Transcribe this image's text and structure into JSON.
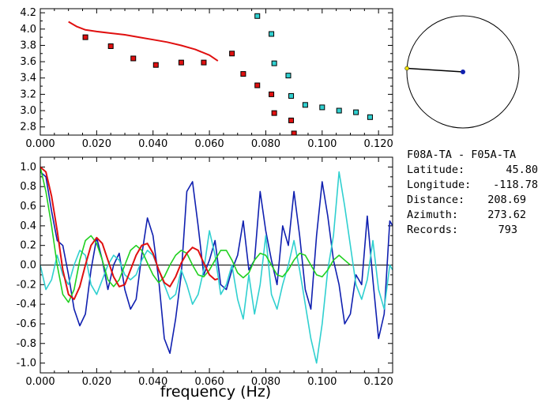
{
  "colors": {
    "red": "#e01010",
    "cyan": "#30d0d0",
    "navy": "#1020b0",
    "green": "#20d020",
    "yellow": "#f0e000",
    "black": "#000000"
  },
  "info": {
    "title": "F08A-TA - F05A-TA",
    "rows": [
      {
        "label": "Latitude:",
        "value": "45.80"
      },
      {
        "label": "Longitude:",
        "value": "-118.78"
      },
      {
        "label": "Distance:",
        "value": "208.69"
      },
      {
        "label": "Azimuth:",
        "value": "273.62"
      },
      {
        "label": "Records:",
        "value": "793"
      }
    ]
  },
  "chart_data": [
    {
      "type": "scatter",
      "panel": "top",
      "xlim": [
        0.0,
        0.125
      ],
      "ylim": [
        2.7,
        4.25
      ],
      "xticks": [
        "0.000",
        "0.020",
        "0.040",
        "0.060",
        "0.080",
        "0.100",
        "0.120"
      ],
      "yticks": [
        "2.8",
        "3.0",
        "3.2",
        "3.4",
        "3.6",
        "3.8",
        "4.0",
        "4.2"
      ],
      "series": [
        {
          "kind": "line",
          "color": "red",
          "x": [
            0.01,
            0.013,
            0.016,
            0.02,
            0.025,
            0.03,
            0.035,
            0.04,
            0.045,
            0.05,
            0.055,
            0.06,
            0.063
          ],
          "y": [
            4.09,
            4.03,
            3.99,
            3.97,
            3.95,
            3.93,
            3.9,
            3.87,
            3.84,
            3.8,
            3.75,
            3.68,
            3.61
          ]
        },
        {
          "kind": "points",
          "color": "red",
          "x": [
            0.016,
            0.025,
            0.033,
            0.041,
            0.05,
            0.058,
            0.068,
            0.072,
            0.077,
            0.082,
            0.083,
            0.089,
            0.09
          ],
          "y": [
            3.9,
            3.79,
            3.64,
            3.56,
            3.59,
            3.59,
            3.7,
            3.45,
            3.31,
            3.2,
            2.97,
            2.88,
            2.72
          ]
        },
        {
          "kind": "points",
          "color": "cyan",
          "x": [
            0.077,
            0.082,
            0.083,
            0.088,
            0.089,
            0.094,
            0.1,
            0.106,
            0.112,
            0.117
          ],
          "y": [
            4.16,
            3.94,
            3.58,
            3.43,
            3.18,
            3.07,
            3.04,
            3.0,
            2.98,
            2.92
          ]
        }
      ]
    },
    {
      "type": "line",
      "panel": "bottom",
      "xlabel": "frequency (Hz)",
      "xlim": [
        0.0,
        0.125
      ],
      "ylim": [
        -1.1,
        1.1
      ],
      "xticks": [
        "0.000",
        "0.020",
        "0.040",
        "0.060",
        "0.080",
        "0.100",
        "0.120"
      ],
      "yticks": [
        "1.0",
        "0.8",
        "0.6",
        "0.4",
        "0.2",
        "0.0",
        "-0.2",
        "-0.4",
        "-0.6",
        "-0.8",
        "-1.0"
      ],
      "series": [
        {
          "color": "navy",
          "x": [
            0.0,
            0.002,
            0.004,
            0.006,
            0.008,
            0.01,
            0.012,
            0.014,
            0.016,
            0.018,
            0.02,
            0.022,
            0.024,
            0.026,
            0.028,
            0.03,
            0.032,
            0.034,
            0.036,
            0.038,
            0.04,
            0.042,
            0.044,
            0.046,
            0.048,
            0.05,
            0.052,
            0.054,
            0.056,
            0.058,
            0.06,
            0.062,
            0.064,
            0.066,
            0.068,
            0.07,
            0.072,
            0.074,
            0.076,
            0.078,
            0.08,
            0.082,
            0.084,
            0.086,
            0.088,
            0.09,
            0.092,
            0.094,
            0.096,
            0.098,
            0.1,
            0.102,
            0.104,
            0.106,
            0.108,
            0.11,
            0.112,
            0.114,
            0.116,
            0.118,
            0.12,
            0.122,
            0.124,
            0.125
          ],
          "y": [
            0.95,
            0.9,
            0.55,
            0.25,
            0.2,
            -0.1,
            -0.45,
            -0.62,
            -0.5,
            -0.05,
            0.28,
            0.05,
            -0.25,
            0.0,
            0.12,
            -0.25,
            -0.45,
            -0.35,
            0.1,
            0.48,
            0.3,
            -0.15,
            -0.75,
            -0.9,
            -0.55,
            -0.1,
            0.75,
            0.85,
            0.4,
            -0.1,
            0.05,
            0.25,
            -0.2,
            -0.25,
            -0.05,
            0.1,
            0.45,
            -0.05,
            0.05,
            0.75,
            0.35,
            0.05,
            -0.2,
            0.4,
            0.2,
            0.75,
            0.3,
            -0.25,
            -0.45,
            0.3,
            0.85,
            0.5,
            0.05,
            -0.2,
            -0.6,
            -0.5,
            -0.1,
            -0.2,
            0.5,
            -0.15,
            -0.75,
            -0.5,
            0.45,
            0.4
          ]
        },
        {
          "color": "cyan",
          "x": [
            0.0,
            0.002,
            0.004,
            0.006,
            0.008,
            0.01,
            0.012,
            0.014,
            0.016,
            0.018,
            0.02,
            0.022,
            0.024,
            0.026,
            0.028,
            0.03,
            0.032,
            0.034,
            0.036,
            0.038,
            0.04,
            0.042,
            0.044,
            0.046,
            0.048,
            0.05,
            0.052,
            0.054,
            0.056,
            0.058,
            0.06,
            0.062,
            0.064,
            0.066,
            0.068,
            0.07,
            0.072,
            0.074,
            0.076,
            0.078,
            0.08,
            0.082,
            0.084,
            0.086,
            0.088,
            0.09,
            0.092,
            0.094,
            0.096,
            0.098,
            0.1,
            0.102,
            0.104,
            0.106,
            0.108,
            0.11,
            0.112,
            0.114,
            0.116,
            0.118,
            0.12,
            0.122,
            0.124,
            0.125
          ],
          "y": [
            0.0,
            -0.25,
            -0.15,
            0.1,
            -0.1,
            -0.2,
            0.0,
            0.15,
            0.1,
            -0.2,
            -0.3,
            -0.15,
            0.0,
            0.1,
            0.05,
            -0.1,
            -0.15,
            -0.1,
            0.05,
            0.15,
            0.1,
            -0.05,
            -0.2,
            -0.35,
            -0.3,
            -0.05,
            -0.2,
            -0.4,
            -0.3,
            -0.05,
            0.35,
            0.1,
            -0.3,
            -0.2,
            0.0,
            -0.35,
            -0.55,
            -0.1,
            -0.5,
            -0.2,
            0.3,
            -0.3,
            -0.45,
            -0.2,
            0.0,
            0.25,
            -0.05,
            -0.4,
            -0.75,
            -1.0,
            -0.6,
            -0.05,
            0.3,
            0.95,
            0.6,
            0.2,
            -0.2,
            -0.35,
            -0.15,
            0.25,
            -0.25,
            -0.45,
            0.0,
            -0.05
          ]
        },
        {
          "color": "green",
          "x": [
            0.0,
            0.002,
            0.004,
            0.006,
            0.008,
            0.01,
            0.012,
            0.014,
            0.016,
            0.018,
            0.02,
            0.022,
            0.024,
            0.026,
            0.028,
            0.03,
            0.032,
            0.034,
            0.036,
            0.038,
            0.04,
            0.042,
            0.044,
            0.046,
            0.048,
            0.05,
            0.052,
            0.054,
            0.056,
            0.058,
            0.06,
            0.062,
            0.064,
            0.066,
            0.068,
            0.07,
            0.072,
            0.074,
            0.076,
            0.078,
            0.08,
            0.082,
            0.084,
            0.086,
            0.088,
            0.09,
            0.092,
            0.094,
            0.096,
            0.098,
            0.1,
            0.102,
            0.104,
            0.106,
            0.108,
            0.11
          ],
          "y": [
            1.0,
            0.75,
            0.4,
            0.0,
            -0.3,
            -0.38,
            -0.25,
            0.05,
            0.25,
            0.3,
            0.22,
            0.05,
            -0.15,
            -0.22,
            -0.15,
            0.0,
            0.15,
            0.2,
            0.15,
            0.02,
            -0.1,
            -0.18,
            -0.12,
            0.0,
            0.1,
            0.15,
            0.12,
            0.0,
            -0.1,
            -0.12,
            -0.05,
            0.05,
            0.15,
            0.15,
            0.05,
            -0.08,
            -0.13,
            -0.08,
            0.05,
            0.12,
            0.1,
            0.0,
            -0.1,
            -0.12,
            -0.05,
            0.05,
            0.12,
            0.1,
            0.0,
            -0.1,
            -0.12,
            -0.05,
            0.05,
            0.1,
            0.05,
            0.0
          ]
        },
        {
          "color": "red",
          "x": [
            0.0,
            0.002,
            0.004,
            0.006,
            0.008,
            0.01,
            0.012,
            0.014,
            0.016,
            0.018,
            0.02,
            0.022,
            0.024,
            0.026,
            0.028,
            0.03,
            0.032,
            0.034,
            0.036,
            0.038,
            0.04,
            0.042,
            0.044,
            0.046,
            0.048,
            0.05,
            0.052,
            0.054,
            0.056,
            0.058,
            0.06,
            0.062,
            0.063
          ],
          "y": [
            1.0,
            0.95,
            0.7,
            0.35,
            -0.05,
            -0.3,
            -0.35,
            -0.22,
            0.0,
            0.2,
            0.28,
            0.22,
            0.05,
            -0.12,
            -0.22,
            -0.2,
            -0.05,
            0.1,
            0.2,
            0.22,
            0.12,
            -0.05,
            -0.18,
            -0.22,
            -0.12,
            0.02,
            0.12,
            0.18,
            0.15,
            0.02,
            -0.1,
            -0.15,
            -0.14
          ]
        }
      ]
    }
  ],
  "compass": {
    "azimuth_deg": 273.62
  }
}
